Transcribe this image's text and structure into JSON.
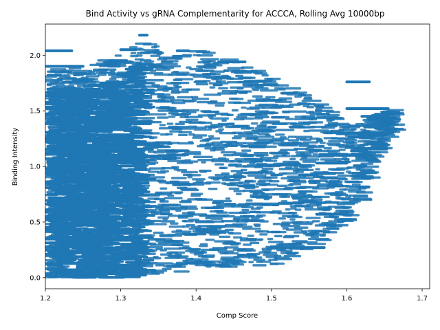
{
  "chart_data": {
    "type": "scatter",
    "title": "Bind Activity vs gRNA Complementarity for ACCCA, Rolling Avg 10000bp",
    "xlabel": "Comp Score",
    "ylabel": "Binding Intensity",
    "xlim": [
      1.2,
      1.71
    ],
    "ylim": [
      -0.1,
      2.28
    ],
    "xticks": [
      "1.2",
      "1.3",
      "1.4",
      "1.5",
      "1.6",
      "1.7"
    ],
    "yticks": [
      "0.0",
      "0.5",
      "1.0",
      "1.5",
      "2.0"
    ],
    "grid": false,
    "color": "#1f77b4",
    "envelope_upper": [
      [
        1.2,
        1.9
      ],
      [
        1.25,
        1.9
      ],
      [
        1.3,
        2.05
      ],
      [
        1.33,
        2.18
      ],
      [
        1.36,
        2.0
      ],
      [
        1.4,
        2.05
      ],
      [
        1.45,
        1.95
      ],
      [
        1.5,
        1.8
      ],
      [
        1.55,
        1.6
      ],
      [
        1.6,
        1.38
      ],
      [
        1.65,
        1.52
      ]
    ],
    "envelope_lower": [
      [
        1.2,
        0.0
      ],
      [
        1.3,
        0.0
      ],
      [
        1.35,
        0.03
      ],
      [
        1.4,
        0.08
      ],
      [
        1.45,
        0.1
      ],
      [
        1.5,
        0.12
      ],
      [
        1.55,
        0.27
      ],
      [
        1.6,
        0.55
      ],
      [
        1.65,
        1.3
      ]
    ],
    "highlight_segments": [
      {
        "x1": 1.2,
        "x2": 1.235,
        "y": 2.04
      },
      {
        "x1": 1.2,
        "x2": 1.25,
        "y": 1.9
      },
      {
        "x1": 1.3,
        "x2": 1.32,
        "y": 2.05
      },
      {
        "x1": 1.325,
        "x2": 1.335,
        "y": 2.18
      },
      {
        "x1": 1.375,
        "x2": 1.39,
        "y": 2.04
      },
      {
        "x1": 1.43,
        "x2": 1.465,
        "y": 1.94
      },
      {
        "x1": 1.6,
        "x2": 1.63,
        "y": 1.76
      },
      {
        "x1": 1.6,
        "x2": 1.655,
        "y": 1.52
      },
      {
        "x1": 1.62,
        "x2": 1.655,
        "y": 1.45
      },
      {
        "x1": 1.6,
        "x2": 1.645,
        "y": 1.3
      },
      {
        "x1": 1.56,
        "x2": 1.6,
        "y": 1.03
      },
      {
        "x1": 1.56,
        "x2": 1.6,
        "y": 0.57
      },
      {
        "x1": 1.5,
        "x2": 1.57,
        "y": 0.27
      }
    ]
  }
}
